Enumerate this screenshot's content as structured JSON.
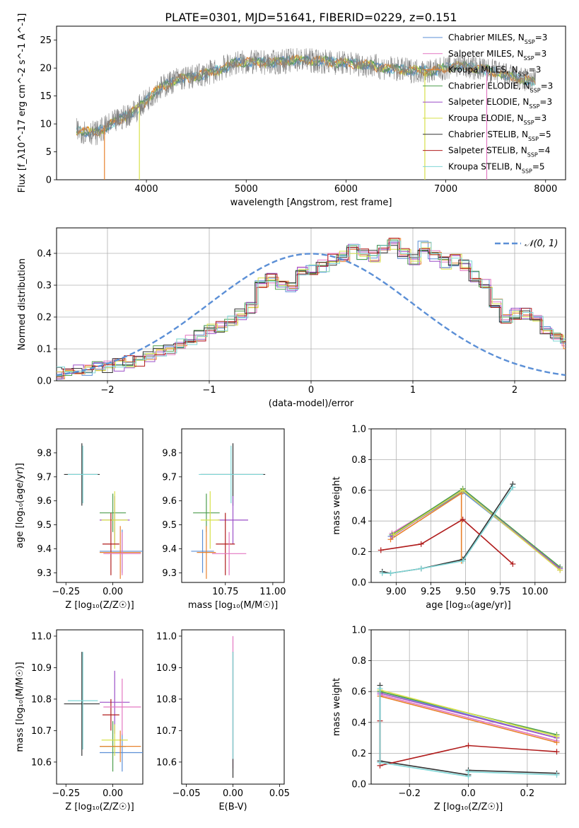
{
  "title": "PLATE=0301, MJD=51641, FIBERID=0229, z=0.151",
  "series_styles": [
    {
      "name": "Chabrier MILES, N<sub>SSP</sub>=3",
      "color": "#5b8fd6"
    },
    {
      "name": "Salpeter MILES, N<sub>SSP</sub>=3",
      "color": "#e377c2"
    },
    {
      "name": "Kroupa MILES, N<sub>SSP</sub>=3",
      "color": "#e8822e"
    },
    {
      "name": "Chabrier ELODIE, N<sub>SSP</sub>=3",
      "color": "#4e9e4e"
    },
    {
      "name": "Salpeter ELODIE, N<sub>SSP</sub>=3",
      "color": "#9b4fc7"
    },
    {
      "name": "Kroupa ELODIE, N<sub>SSP</sub>=3",
      "color": "#d7e04a"
    },
    {
      "name": "Chabrier STELIB, N<sub>SSP</sub>=5",
      "color": "#333333"
    },
    {
      "name": "Salpeter STELIB, N<sub>SSP</sub>=4",
      "color": "#b01c1c"
    },
    {
      "name": "Kroupa STELIB, N<sub>SSP</sub>=5",
      "color": "#7fd6d6"
    }
  ],
  "legend_labels": [
    {
      "pre": "Chabrier MILES, N",
      "sub": "SSP",
      "post": "=3"
    },
    {
      "pre": "Salpeter MILES, N",
      "sub": "SSP",
      "post": "=3"
    },
    {
      "pre": "Kroupa MILES, N",
      "sub": "SSP",
      "post": "=3"
    },
    {
      "pre": "Chabrier ELODIE, N",
      "sub": "SSP",
      "post": "=3"
    },
    {
      "pre": "Salpeter ELODIE, N",
      "sub": "SSP",
      "post": "=3"
    },
    {
      "pre": "Kroupa ELODIE, N",
      "sub": "SSP",
      "post": "=3"
    },
    {
      "pre": "Chabrier STELIB, N",
      "sub": "SSP",
      "post": "=5"
    },
    {
      "pre": "Salpeter STELIB, N",
      "sub": "SSP",
      "post": "=4"
    },
    {
      "pre": "Kroupa STELIB, N",
      "sub": "SSP",
      "post": "=5"
    }
  ],
  "chart_data": [
    {
      "id": "spectrum",
      "type": "line",
      "xlabel": "wavelength [Angstrom, rest frame]",
      "ylabel": "Flux [f_λ10^-17 erg cm^-2 s^-1 A^-1]",
      "xlim": [
        3100,
        8200
      ],
      "ylim": [
        0,
        27.5
      ],
      "xticks": [
        4000,
        5000,
        6000,
        7000,
        8000
      ],
      "yticks": [
        0,
        5,
        10,
        15,
        20,
        25
      ],
      "grid": false,
      "legend": "top-right",
      "continuum": {
        "x": [
          3300,
          3500,
          3700,
          3900,
          4100,
          4300,
          4500,
          4700,
          4900,
          5100,
          5300,
          5500,
          5700,
          5900,
          6100,
          6300,
          6500,
          6700,
          6900,
          7100,
          7300,
          7500,
          7700,
          7900
        ],
        "y": [
          8.8,
          8.4,
          10.5,
          12.5,
          16.0,
          18.0,
          18.5,
          19.5,
          21.0,
          21.0,
          21.0,
          21.5,
          21.3,
          21.0,
          20.8,
          20.3,
          19.8,
          19.5,
          19.5,
          20.5,
          20.0,
          19.3,
          18.2,
          17.5
        ]
      },
      "observed_color": "#808080"
    },
    {
      "id": "residuals",
      "type": "line",
      "xlabel": "(data-model)/error",
      "ylabel": "Normed distribution",
      "xlim": [
        -2.5,
        2.5
      ],
      "ylim": [
        0,
        0.48
      ],
      "xticks": [
        -2,
        -1,
        0,
        1,
        2
      ],
      "xtick_labels": [
        "−2",
        "−1",
        "0",
        "1",
        "2"
      ],
      "yticks": [
        0.0,
        0.1,
        0.2,
        0.3,
        0.4
      ],
      "grid": true,
      "legend": "top-right",
      "gaussian_label": "𝒩(0, 1)",
      "gaussian_color": "#5b8fd6",
      "bin_width": 0.1,
      "hist_base": [
        0.025,
        0.03,
        0.03,
        0.035,
        0.04,
        0.045,
        0.05,
        0.06,
        0.065,
        0.08,
        0.09,
        0.1,
        0.12,
        0.13,
        0.14,
        0.16,
        0.17,
        0.19,
        0.21,
        0.23,
        0.31,
        0.32,
        0.3,
        0.29,
        0.34,
        0.35,
        0.36,
        0.38,
        0.39,
        0.41,
        0.4,
        0.39,
        0.41,
        0.43,
        0.4,
        0.38,
        0.42,
        0.39,
        0.37,
        0.38,
        0.36,
        0.33,
        0.3,
        0.24,
        0.2,
        0.21,
        0.21,
        0.19,
        0.15,
        0.13,
        0.12,
        0.1,
        0.09,
        0.08,
        0.07,
        0.06,
        0.05,
        0.04,
        0.035,
        0.03,
        0.02
      ]
    },
    {
      "id": "age_vs_z",
      "type": "scatter",
      "xlabel": "Z [log₁₀(Z/Z☉)]",
      "ylabel": "age  [log₁₀(age/yr)]",
      "xlim": [
        -0.3,
        0.16
      ],
      "ylim": [
        9.26,
        9.9
      ],
      "xticks": [
        -0.25,
        0.0
      ],
      "xtick_labels": [
        "−0.25",
        "0.00"
      ],
      "yticks": [
        9.3,
        9.4,
        9.5,
        9.6,
        9.7,
        9.8
      ],
      "grid": false,
      "points": [
        {
          "s": 6,
          "x": -0.165,
          "xerr": 0.095,
          "y": 9.71,
          "yerr": 0.13
        },
        {
          "s": 8,
          "x": -0.16,
          "xerr": 0.08,
          "y": 9.71,
          "yerr": 0.12
        },
        {
          "s": 0,
          "x": 0.05,
          "xerr": 0.12,
          "y": 9.39,
          "yerr": 0.09
        },
        {
          "s": 3,
          "x": 0.0,
          "xerr": 0.07,
          "y": 9.55,
          "yerr": 0.08
        },
        {
          "s": 4,
          "x": 0.01,
          "xerr": 0.08,
          "y": 9.52,
          "yerr": 0.1
        },
        {
          "s": 5,
          "x": 0.01,
          "xerr": 0.07,
          "y": 9.52,
          "yerr": 0.12
        },
        {
          "s": 7,
          "x": -0.01,
          "xerr": 0.045,
          "y": 9.42,
          "yerr": 0.13
        },
        {
          "s": 2,
          "x": 0.04,
          "xerr": 0.11,
          "y": 9.385,
          "yerr": 0.11
        },
        {
          "s": 1,
          "x": 0.05,
          "xerr": 0.1,
          "y": 9.38,
          "yerr": 0.09
        }
      ]
    },
    {
      "id": "age_vs_mass",
      "type": "scatter",
      "xlabel": "mass [log₁₀(M/M☉)]",
      "ylabel": "",
      "xlim": [
        10.52,
        11.06
      ],
      "ylim": [
        9.26,
        9.9
      ],
      "xticks": [
        10.75,
        11.0
      ],
      "xtick_labels": [
        "10.75",
        "11.00"
      ],
      "yticks": [
        9.3,
        9.4,
        9.5,
        9.6,
        9.7,
        9.8
      ],
      "grid": false,
      "points": [
        {
          "s": 6,
          "x": 10.79,
          "xerr": 0.17,
          "y": 9.71,
          "yerr": 0.13
        },
        {
          "s": 8,
          "x": 10.78,
          "xerr": 0.17,
          "y": 9.71,
          "yerr": 0.12
        },
        {
          "s": 0,
          "x": 10.63,
          "xerr": 0.06,
          "y": 9.39,
          "yerr": 0.09
        },
        {
          "s": 3,
          "x": 10.65,
          "xerr": 0.07,
          "y": 9.55,
          "yerr": 0.08
        },
        {
          "s": 4,
          "x": 10.79,
          "xerr": 0.08,
          "y": 9.52,
          "yerr": 0.1
        },
        {
          "s": 5,
          "x": 10.67,
          "xerr": 0.05,
          "y": 9.52,
          "yerr": 0.12
        },
        {
          "s": 7,
          "x": 10.75,
          "xerr": 0.05,
          "y": 9.42,
          "yerr": 0.13
        },
        {
          "s": 2,
          "x": 10.65,
          "xerr": 0.05,
          "y": 9.385,
          "yerr": 0.11
        },
        {
          "s": 1,
          "x": 10.77,
          "xerr": 0.09,
          "y": 9.38,
          "yerr": 0.09
        }
      ]
    },
    {
      "id": "mass_vs_z",
      "type": "scatter",
      "xlabel": "Z [log₁₀(Z/Z☉)]",
      "ylabel": "mass [log₁₀(M/M☉)]",
      "xlim": [
        -0.3,
        0.16
      ],
      "ylim": [
        10.53,
        11.02
      ],
      "xticks": [
        -0.25,
        0.0
      ],
      "xtick_labels": [
        "−0.25",
        "0.00"
      ],
      "yticks": [
        10.6,
        10.7,
        10.8,
        10.9,
        11.0
      ],
      "grid": false,
      "points": [
        {
          "s": 6,
          "x": -0.165,
          "xerr": 0.095,
          "y": 10.785,
          "yerr": 0.165
        },
        {
          "s": 8,
          "x": -0.16,
          "xerr": 0.08,
          "y": 10.795,
          "yerr": 0.155
        },
        {
          "s": 0,
          "x": 0.05,
          "xerr": 0.12,
          "y": 10.63,
          "yerr": 0.06
        },
        {
          "s": 3,
          "x": 0.0,
          "xerr": 0.07,
          "y": 10.65,
          "yerr": 0.08
        },
        {
          "s": 4,
          "x": 0.01,
          "xerr": 0.08,
          "y": 10.79,
          "yerr": 0.1
        },
        {
          "s": 5,
          "x": 0.01,
          "xerr": 0.07,
          "y": 10.67,
          "yerr": 0.05
        },
        {
          "s": 7,
          "x": -0.01,
          "xerr": 0.045,
          "y": 10.75,
          "yerr": 0.05
        },
        {
          "s": 2,
          "x": 0.04,
          "xerr": 0.11,
          "y": 10.65,
          "yerr": 0.05
        },
        {
          "s": 1,
          "x": 0.05,
          "xerr": 0.1,
          "y": 10.775,
          "yerr": 0.09
        }
      ]
    },
    {
      "id": "mass_vs_ebv",
      "type": "scatter",
      "xlabel": "E(B-V)",
      "ylabel": "",
      "xlim": [
        -0.055,
        0.055
      ],
      "ylim": [
        10.53,
        11.02
      ],
      "xticks": [
        -0.05,
        0.0,
        0.05
      ],
      "xtick_labels": [
        "−0.05",
        "0.00",
        "0.05"
      ],
      "yticks": [
        10.6,
        10.7,
        10.8,
        10.9,
        11.0
      ],
      "grid": false,
      "points": [
        {
          "s": 1,
          "x": 0.0,
          "xerr": 0.0,
          "y": 10.79,
          "yerr": 0.21
        },
        {
          "s": 6,
          "x": 0.0,
          "xerr": 0.0,
          "y": 10.75,
          "yerr": 0.2
        },
        {
          "s": 8,
          "x": 0.0,
          "xerr": 0.0,
          "y": 10.78,
          "yerr": 0.17
        }
      ]
    },
    {
      "id": "weight_vs_age",
      "type": "line",
      "xlabel": "age  [log₁₀(age/yr)]",
      "ylabel": "mass weight",
      "xlim": [
        8.82,
        10.22
      ],
      "ylim": [
        0,
        1.0
      ],
      "xticks": [
        9.0,
        9.25,
        9.5,
        9.75,
        10.0
      ],
      "xtick_labels": [
        "9.00",
        "9.25",
        "9.50",
        "9.75",
        "10.00"
      ],
      "yticks": [
        0.0,
        0.2,
        0.4,
        0.6,
        0.8,
        1.0
      ],
      "grid": true,
      "series": [
        {
          "s": 0,
          "x": [
            8.96,
            9.48,
            10.18
          ],
          "y": [
            0.3,
            0.59,
            0.09
          ]
        },
        {
          "s": 1,
          "x": [
            8.97,
            9.48,
            10.18
          ],
          "y": [
            0.32,
            0.6,
            0.08
          ]
        },
        {
          "s": 2,
          "x": [
            8.96,
            9.47,
            9.47
          ],
          "y": [
            0.28,
            0.58,
            0.14
          ]
        },
        {
          "s": 3,
          "x": [
            8.97,
            9.48,
            10.18
          ],
          "y": [
            0.31,
            0.61,
            0.1
          ]
        },
        {
          "s": 4,
          "x": [
            8.97,
            9.48,
            10.18
          ],
          "y": [
            0.3,
            0.6,
            0.09
          ]
        },
        {
          "s": 5,
          "x": [
            8.98,
            9.48,
            10.18
          ],
          "y": [
            0.31,
            0.6,
            0.08
          ]
        },
        {
          "s": 6,
          "x": [
            8.9,
            8.96,
            9.18,
            9.48,
            9.84
          ],
          "y": [
            0.07,
            0.06,
            0.09,
            0.15,
            0.64
          ]
        },
        {
          "s": 7,
          "x": [
            8.89,
            9.18,
            9.48,
            9.84
          ],
          "y": [
            0.21,
            0.25,
            0.41,
            0.12
          ]
        },
        {
          "s": 8,
          "x": [
            8.9,
            8.96,
            9.18,
            9.48,
            9.84
          ],
          "y": [
            0.06,
            0.06,
            0.09,
            0.14,
            0.62
          ]
        }
      ]
    },
    {
      "id": "weight_vs_z",
      "type": "line",
      "xlabel": "Z [log₁₀(Z/Z☉)]",
      "ylabel": "mass weight",
      "xlim": [
        -0.33,
        0.33
      ],
      "ylim": [
        0,
        1.0
      ],
      "xticks": [
        -0.2,
        0.0,
        0.2
      ],
      "xtick_labels": [
        "−0.2",
        "0.0",
        "0.2"
      ],
      "yticks": [
        0.0,
        0.2,
        0.4,
        0.6,
        0.8,
        1.0
      ],
      "grid": true,
      "series": [
        {
          "s": 0,
          "x": [
            -0.3,
            -0.3,
            0.3
          ],
          "y": [
            0.14,
            0.6,
            0.3
          ]
        },
        {
          "s": 1,
          "x": [
            -0.3,
            0.3
          ],
          "y": [
            0.58,
            0.28
          ]
        },
        {
          "s": 2,
          "x": [
            -0.3,
            0.3
          ],
          "y": [
            0.57,
            0.27
          ]
        },
        {
          "s": 3,
          "x": [
            -0.3,
            0.3
          ],
          "y": [
            0.6,
            0.32
          ]
        },
        {
          "s": 4,
          "x": [
            -0.3,
            0.3
          ],
          "y": [
            0.59,
            0.3
          ]
        },
        {
          "s": 5,
          "x": [
            -0.3,
            0.3
          ],
          "y": [
            0.61,
            0.31
          ]
        },
        {
          "s": 6,
          "x": [
            -0.3,
            -0.3,
            0.0,
            0.0,
            0.3
          ],
          "y": [
            0.64,
            0.15,
            0.06,
            0.09,
            0.07
          ]
        },
        {
          "s": 7,
          "x": [
            -0.3,
            -0.3,
            0.0,
            0.3
          ],
          "y": [
            0.41,
            0.12,
            0.25,
            0.21
          ]
        },
        {
          "s": 8,
          "x": [
            -0.3,
            -0.3,
            0.0,
            0.0,
            0.3
          ],
          "y": [
            0.62,
            0.14,
            0.05,
            0.08,
            0.06
          ]
        }
      ]
    }
  ]
}
